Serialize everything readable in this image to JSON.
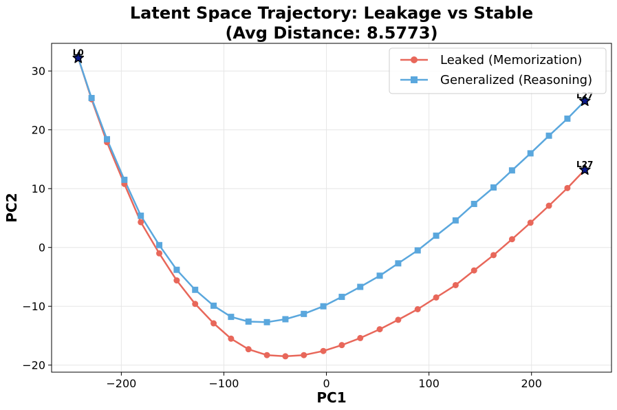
{
  "chart_data": {
    "type": "line",
    "title": [
      "Latent Space Trajectory: Leakage vs Stable",
      "(Avg Distance: 8.5773)"
    ],
    "xlabel": "PC1",
    "ylabel": "PC2",
    "xlim": [
      -268,
      278
    ],
    "ylim": [
      -21.2,
      34.7
    ],
    "xticks": [
      -200,
      -100,
      0,
      100,
      200
    ],
    "yticks": [
      -20,
      -10,
      0,
      10,
      20,
      30
    ],
    "grid": true,
    "legend_position": "top-right",
    "colors": {
      "leaked": "#e8675a",
      "generalized": "#5aa7dd",
      "star_fill": "#0c1a8c",
      "star_edge": "#000000"
    },
    "series": [
      {
        "name": "Leaked (Memorization)",
        "marker": "circle",
        "x": [
          -242,
          -229,
          -214,
          -197,
          -181,
          -163,
          -146,
          -128,
          -110,
          -93,
          -76,
          -58,
          -40,
          -22,
          -3,
          15,
          33,
          52,
          70,
          89,
          107,
          126,
          144,
          163,
          181,
          199,
          217,
          235,
          252
        ],
        "y": [
          32.2,
          25.2,
          17.9,
          10.8,
          4.3,
          -1.0,
          -5.6,
          -9.6,
          -12.9,
          -15.5,
          -17.3,
          -18.3,
          -18.5,
          -18.3,
          -17.6,
          -16.6,
          -15.4,
          -13.9,
          -12.3,
          -10.5,
          -8.5,
          -6.4,
          -3.9,
          -1.3,
          1.4,
          4.2,
          7.1,
          10.1,
          13.2
        ]
      },
      {
        "name": "Generalized (Reasoning)",
        "marker": "square",
        "x": [
          -242,
          -229,
          -214,
          -197,
          -181,
          -163,
          -146,
          -128,
          -110,
          -93,
          -76,
          -58,
          -40,
          -22,
          -3,
          15,
          33,
          52,
          70,
          89,
          107,
          126,
          144,
          163,
          181,
          199,
          217,
          235,
          252
        ],
        "y": [
          32.2,
          25.4,
          18.4,
          11.5,
          5.4,
          0.4,
          -3.8,
          -7.2,
          -9.9,
          -11.8,
          -12.6,
          -12.7,
          -12.2,
          -11.3,
          -10.0,
          -8.4,
          -6.7,
          -4.8,
          -2.7,
          -0.5,
          2.0,
          4.6,
          7.4,
          10.2,
          13.1,
          16.0,
          19.0,
          21.9,
          24.9
        ]
      }
    ],
    "annotations": [
      {
        "text": "L0",
        "x": -242,
        "y": 32.2,
        "marker": "star"
      },
      {
        "text": "L27",
        "x": 252,
        "y": 24.9,
        "marker": "star"
      },
      {
        "text": "L27",
        "x": 252,
        "y": 13.2,
        "marker": "star"
      }
    ]
  }
}
